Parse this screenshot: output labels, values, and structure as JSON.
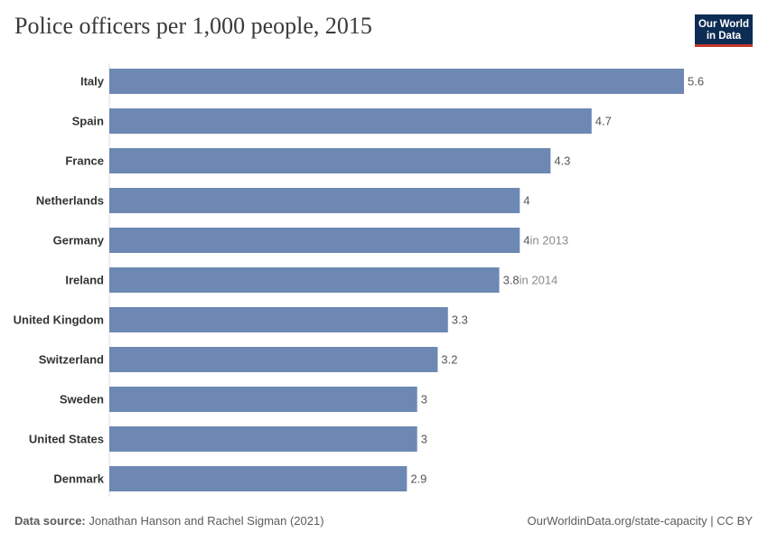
{
  "header": {
    "title": "Police officers per 1,000 people, 2015",
    "logo_line1": "Our World",
    "logo_line2": "in Data"
  },
  "footer": {
    "source_label": "Data source:",
    "source_text": "Jonathan Hanson and Rachel Sigman (2021)",
    "link_text": "OurWorldinData.org/state-capacity | CC BY"
  },
  "colors": {
    "bar": "#6d88b2",
    "label": "#333333",
    "value": "#555555",
    "note": "#8a8a8a",
    "axis": "#dddddd"
  },
  "chart_data": {
    "type": "bar",
    "orientation": "horizontal",
    "title": "Police officers per 1,000 people, 2015",
    "xlim": [
      0,
      5.6
    ],
    "grid": false,
    "categories": [
      "Italy",
      "Spain",
      "France",
      "Netherlands",
      "Germany",
      "Ireland",
      "United Kingdom",
      "Switzerland",
      "Sweden",
      "United States",
      "Denmark"
    ],
    "values": [
      5.6,
      4.7,
      4.3,
      4,
      4,
      3.8,
      3.3,
      3.2,
      3,
      3,
      2.9
    ],
    "value_labels": [
      "5.6",
      "4.7",
      "4.3",
      "4",
      "4",
      "3.8",
      "3.3",
      "3.2",
      "3",
      "3",
      "2.9"
    ],
    "notes": [
      "",
      "",
      "",
      "",
      "in 2013",
      "in 2014",
      "",
      "",
      "",
      "",
      ""
    ]
  }
}
